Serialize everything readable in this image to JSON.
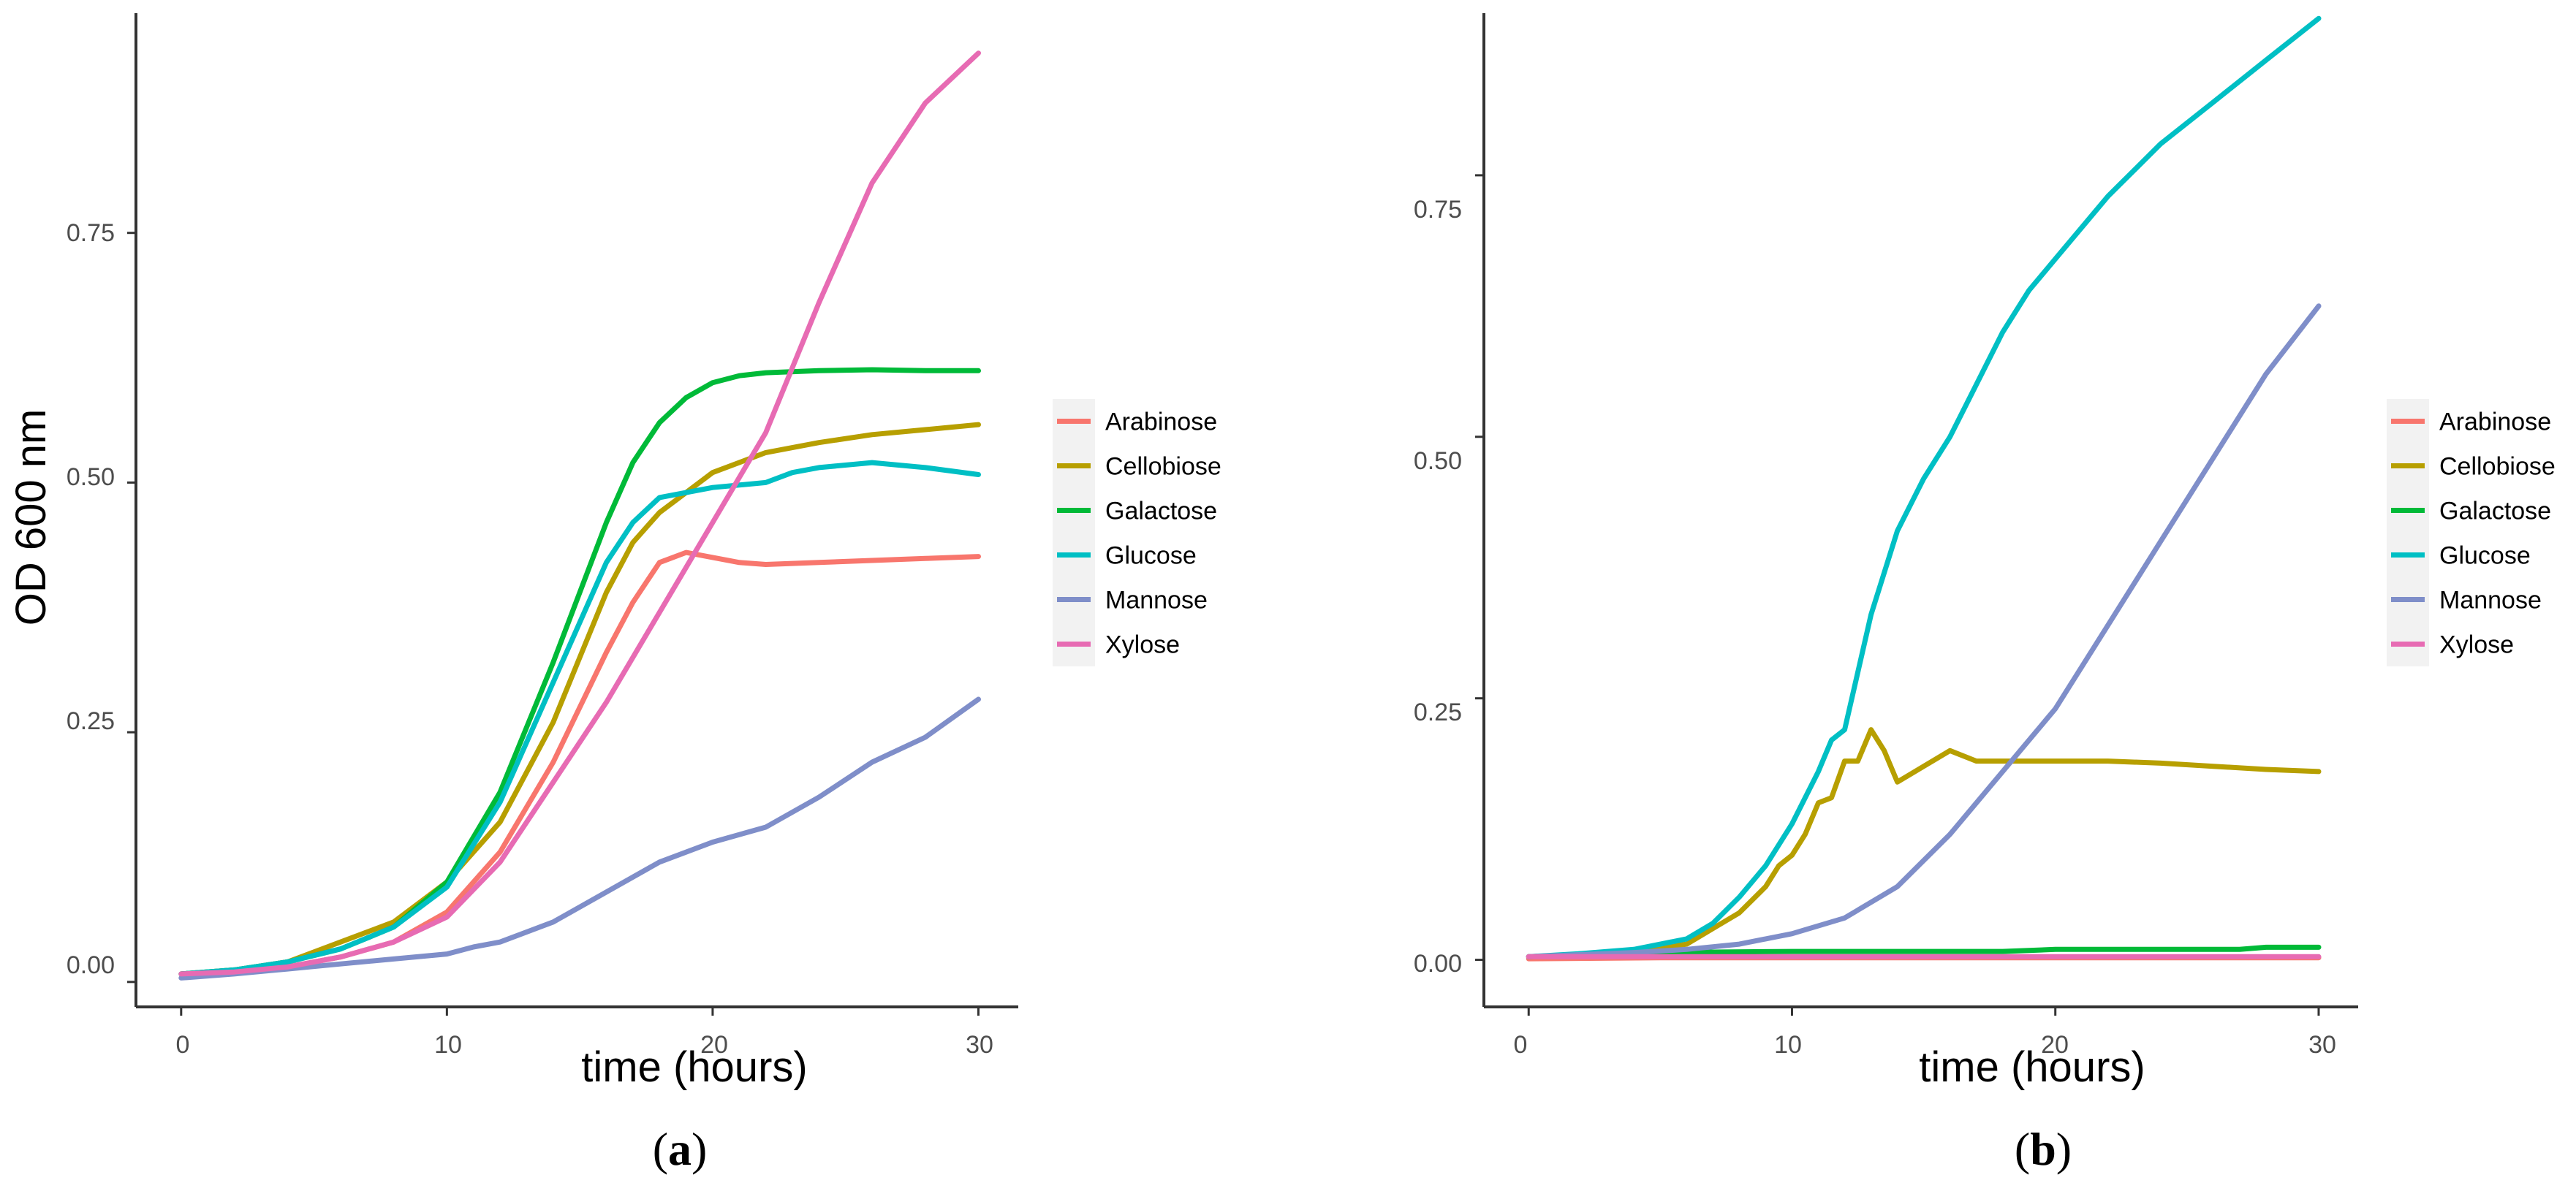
{
  "chart_data": [
    {
      "type": "line",
      "panel_label": "a",
      "xlabel": "time (hours)",
      "ylabel": "OD 600 nm",
      "xlim": [
        -1.7,
        31.5
      ],
      "ylim": [
        -0.025,
        0.97
      ],
      "x_ticks": [
        0,
        10,
        20,
        30
      ],
      "x_tick_labels": [
        "0",
        "10",
        "20",
        "30"
      ],
      "y_ticks": [
        0,
        0.25,
        0.5,
        0.75
      ],
      "y_tick_labels": [
        "0.00",
        "0.25",
        "0.50",
        "0.75"
      ],
      "grid": false,
      "legend_position": "right",
      "series": [
        {
          "name": "Arabinose",
          "color": "#F8766D",
          "x": [
            0,
            2,
            4,
            6,
            8,
            10,
            12,
            14,
            16,
            17,
            18,
            19,
            20,
            21,
            22,
            24,
            26,
            28,
            30
          ],
          "y": [
            0.008,
            0.01,
            0.015,
            0.025,
            0.04,
            0.07,
            0.13,
            0.22,
            0.33,
            0.38,
            0.42,
            0.43,
            0.425,
            0.42,
            0.418,
            0.42,
            0.422,
            0.424,
            0.426
          ]
        },
        {
          "name": "Cellobiose",
          "color": "#B79F00",
          "x": [
            0,
            2,
            4,
            6,
            8,
            10,
            12,
            14,
            16,
            17,
            18,
            19,
            20,
            22,
            24,
            26,
            28,
            30
          ],
          "y": [
            0.008,
            0.012,
            0.02,
            0.04,
            0.06,
            0.1,
            0.16,
            0.26,
            0.39,
            0.44,
            0.47,
            0.49,
            0.51,
            0.53,
            0.54,
            0.548,
            0.553,
            0.558
          ]
        },
        {
          "name": "Galactose",
          "color": "#00BA38",
          "x": [
            0,
            2,
            4,
            6,
            8,
            10,
            12,
            14,
            16,
            17,
            18,
            19,
            20,
            21,
            22,
            24,
            26,
            28,
            30
          ],
          "y": [
            0.008,
            0.012,
            0.02,
            0.033,
            0.055,
            0.1,
            0.19,
            0.32,
            0.46,
            0.52,
            0.56,
            0.585,
            0.6,
            0.607,
            0.61,
            0.612,
            0.613,
            0.612,
            0.612
          ]
        },
        {
          "name": "Glucose",
          "color": "#00BFC4",
          "x": [
            0,
            2,
            4,
            6,
            8,
            10,
            12,
            14,
            16,
            17,
            18,
            19,
            20,
            22,
            23,
            24,
            26,
            28,
            30
          ],
          "y": [
            0.008,
            0.012,
            0.02,
            0.033,
            0.055,
            0.095,
            0.18,
            0.3,
            0.42,
            0.46,
            0.485,
            0.49,
            0.495,
            0.5,
            0.51,
            0.515,
            0.52,
            0.515,
            0.508
          ]
        },
        {
          "name": "Mannose",
          "color": "#7F8EC9",
          "x": [
            0,
            2,
            4,
            6,
            8,
            10,
            11,
            12,
            14,
            16,
            18,
            20,
            22,
            24,
            26,
            28,
            30
          ],
          "y": [
            0.004,
            0.008,
            0.013,
            0.018,
            0.023,
            0.028,
            0.035,
            0.04,
            0.06,
            0.09,
            0.12,
            0.14,
            0.155,
            0.185,
            0.22,
            0.245,
            0.283
          ]
        },
        {
          "name": "Xylose",
          "color": "#E76BB3",
          "x": [
            0,
            2,
            4,
            6,
            8,
            10,
            12,
            14,
            16,
            18,
            20,
            22,
            24,
            26,
            28,
            30
          ],
          "y": [
            0.008,
            0.01,
            0.015,
            0.025,
            0.04,
            0.065,
            0.12,
            0.2,
            0.28,
            0.37,
            0.46,
            0.55,
            0.68,
            0.8,
            0.88,
            0.93
          ]
        }
      ]
    },
    {
      "type": "line",
      "panel_label": "b",
      "xlabel": "time (hours)",
      "ylabel": "",
      "xlim": [
        -1.7,
        31.5
      ],
      "ylim": [
        -0.045,
        0.905
      ],
      "x_ticks": [
        0,
        10,
        20,
        30
      ],
      "x_tick_labels": [
        "0",
        "10",
        "20",
        "30"
      ],
      "y_ticks": [
        0,
        0.25,
        0.5,
        0.75
      ],
      "y_tick_labels": [
        "0.00",
        "0.25",
        "0.50",
        "0.75"
      ],
      "grid": false,
      "legend_position": "right",
      "series": [
        {
          "name": "Arabinose",
          "color": "#F8766D",
          "x": [
            0,
            5,
            10,
            15,
            20,
            25,
            30
          ],
          "y": [
            0.001,
            0.002,
            0.002,
            0.002,
            0.002,
            0.002,
            0.002
          ]
        },
        {
          "name": "Cellobiose",
          "color": "#B79F00",
          "x": [
            0,
            4,
            6,
            7,
            8,
            9,
            9.5,
            10,
            10.5,
            11,
            11.5,
            12,
            12.5,
            13,
            13.5,
            14,
            15,
            16,
            17,
            18,
            20,
            22,
            24,
            26,
            28,
            30
          ],
          "y": [
            0.003,
            0.007,
            0.015,
            0.03,
            0.045,
            0.07,
            0.09,
            0.1,
            0.12,
            0.15,
            0.155,
            0.19,
            0.19,
            0.22,
            0.2,
            0.17,
            0.185,
            0.2,
            0.19,
            0.19,
            0.19,
            0.19,
            0.188,
            0.185,
            0.182,
            0.18
          ]
        },
        {
          "name": "Galactose",
          "color": "#00BA38",
          "x": [
            0,
            5,
            10,
            15,
            18,
            20,
            25,
            27,
            28,
            30
          ],
          "y": [
            0.003,
            0.007,
            0.008,
            0.008,
            0.008,
            0.01,
            0.01,
            0.01,
            0.012,
            0.012
          ]
        },
        {
          "name": "Glucose",
          "color": "#00BFC4",
          "x": [
            0,
            2,
            4,
            6,
            7,
            8,
            9,
            10,
            11,
            11.5,
            12,
            13,
            14,
            15,
            16,
            17,
            18,
            19,
            20,
            22,
            24,
            26,
            28,
            30
          ],
          "y": [
            0.003,
            0.006,
            0.01,
            0.02,
            0.035,
            0.06,
            0.09,
            0.13,
            0.18,
            0.21,
            0.22,
            0.33,
            0.41,
            0.46,
            0.5,
            0.55,
            0.6,
            0.64,
            0.67,
            0.73,
            0.78,
            0.82,
            0.86,
            0.9
          ]
        },
        {
          "name": "Mannose",
          "color": "#7F8EC9",
          "x": [
            0,
            2,
            4,
            6,
            8,
            10,
            12,
            14,
            16,
            18,
            20,
            22,
            24,
            26,
            28,
            30
          ],
          "y": [
            0.003,
            0.005,
            0.007,
            0.01,
            0.015,
            0.025,
            0.04,
            0.07,
            0.12,
            0.18,
            0.24,
            0.32,
            0.4,
            0.48,
            0.56,
            0.625
          ]
        },
        {
          "name": "Xylose",
          "color": "#E76BB3",
          "x": [
            0,
            5,
            10,
            15,
            20,
            25,
            30
          ],
          "y": [
            0.003,
            0.003,
            0.003,
            0.003,
            0.003,
            0.003,
            0.003
          ]
        }
      ]
    }
  ]
}
